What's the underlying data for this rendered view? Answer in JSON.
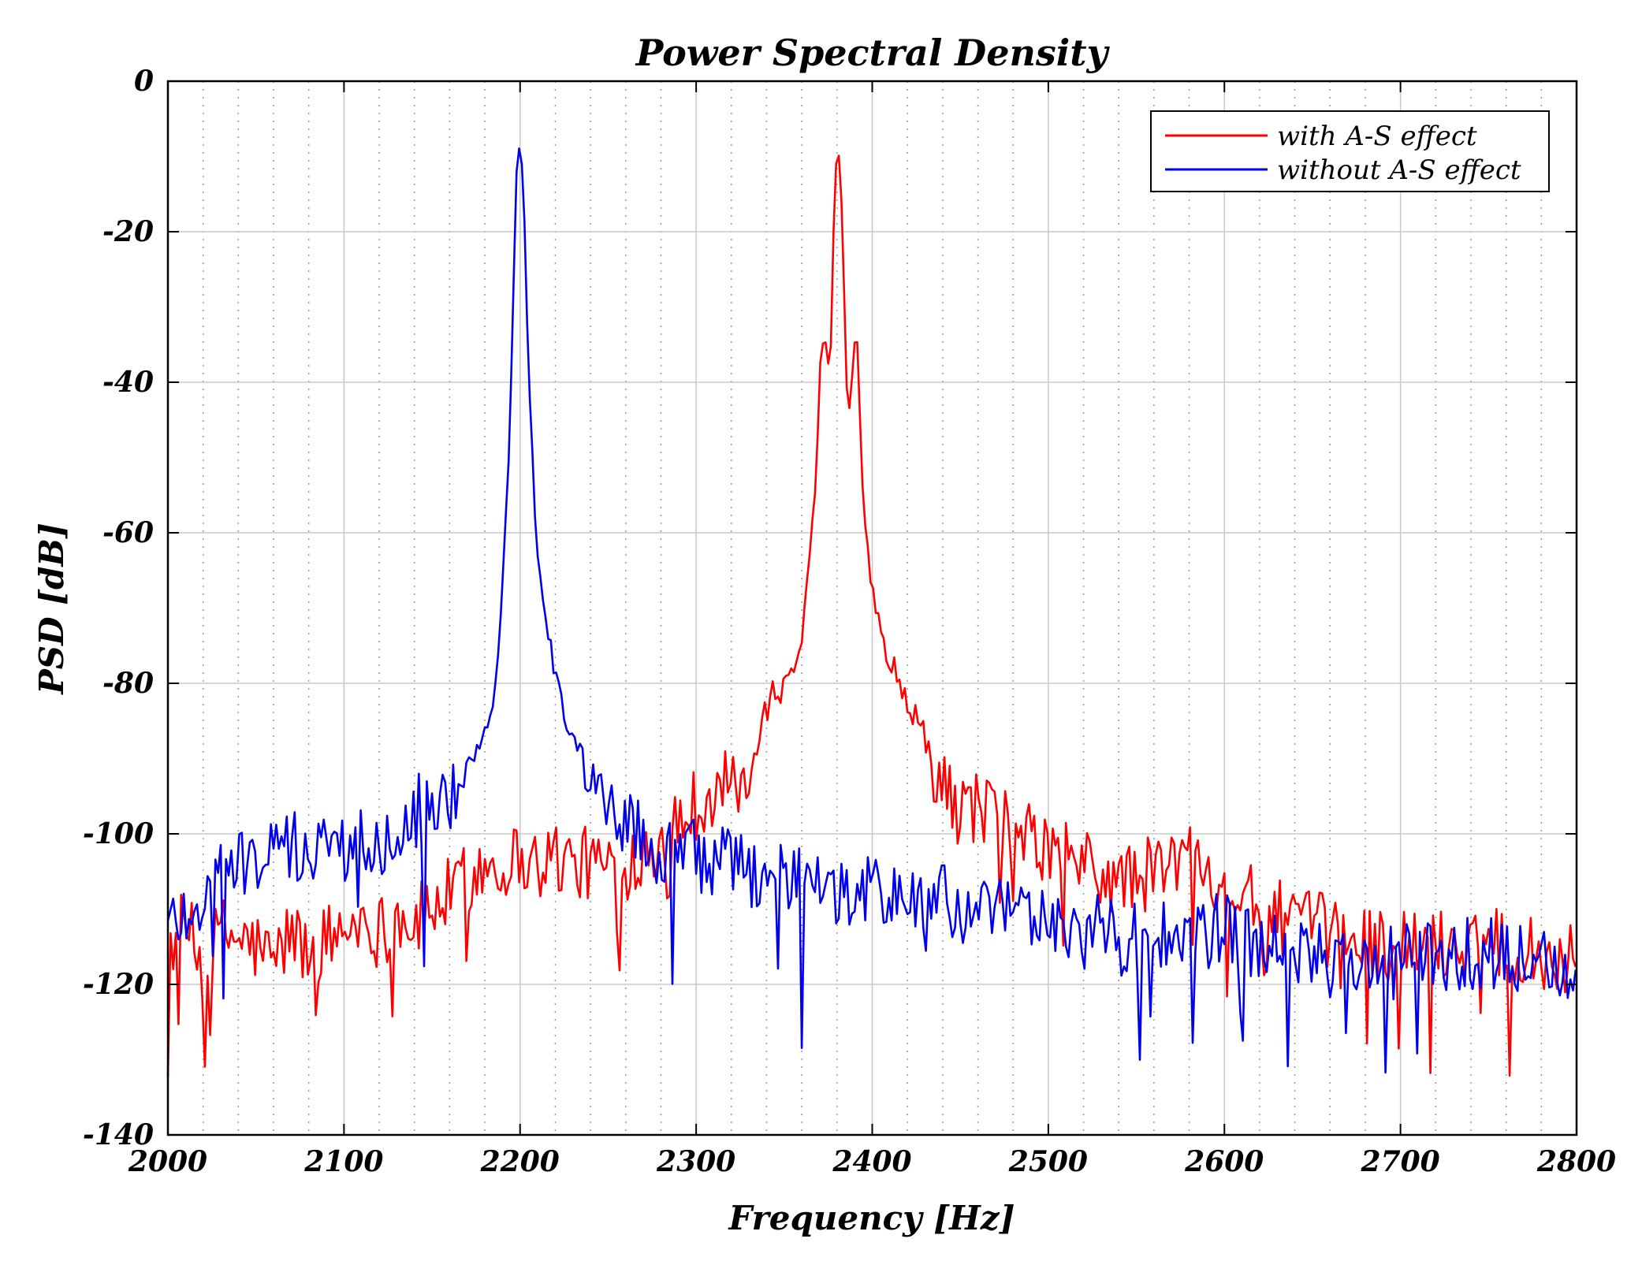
{
  "chart_data": {
    "type": "line",
    "title": "Power Spectral Density",
    "xlabel": "Frequency [Hz]",
    "ylabel": "PSD [dB]",
    "xlim": [
      2000,
      2800
    ],
    "ylim": [
      -140,
      0
    ],
    "xticks": [
      2000,
      2100,
      2200,
      2300,
      2400,
      2500,
      2600,
      2700,
      2800
    ],
    "yticks": [
      0,
      -20,
      -40,
      -60,
      -80,
      -100,
      -120,
      -140
    ],
    "xticklabels": [
      "2000",
      "2100",
      "2200",
      "2300",
      "2400",
      "2500",
      "2600",
      "2700",
      "2800"
    ],
    "yticklabels": [
      "0",
      "-20",
      "-40",
      "-60",
      "-80",
      "-100",
      "-120",
      "-140"
    ],
    "grid": true,
    "legend_position": "top-right",
    "series": [
      {
        "name": "with A-S effect",
        "color": "#ff0000",
        "anchors": [
          [
            2000,
            -115
          ],
          [
            2010,
            -112
          ],
          [
            2020,
            -118
          ],
          [
            2030,
            -113
          ],
          [
            2040,
            -114
          ],
          [
            2050,
            -115
          ],
          [
            2060,
            -117
          ],
          [
            2070,
            -113
          ],
          [
            2080,
            -116
          ],
          [
            2090,
            -114
          ],
          [
            2100,
            -113
          ],
          [
            2110,
            -111
          ],
          [
            2120,
            -113
          ],
          [
            2130,
            -111
          ],
          [
            2140,
            -112
          ],
          [
            2150,
            -110
          ],
          [
            2160,
            -108
          ],
          [
            2170,
            -106
          ],
          [
            2180,
            -104
          ],
          [
            2190,
            -104
          ],
          [
            2200,
            -103
          ],
          [
            2210,
            -104
          ],
          [
            2220,
            -103
          ],
          [
            2230,
            -104
          ],
          [
            2240,
            -104
          ],
          [
            2250,
            -104
          ],
          [
            2260,
            -104
          ],
          [
            2270,
            -102
          ],
          [
            2280,
            -100
          ],
          [
            2290,
            -98
          ],
          [
            2300,
            -96
          ],
          [
            2310,
            -94
          ],
          [
            2320,
            -94
          ],
          [
            2330,
            -92
          ],
          [
            2335,
            -88
          ],
          [
            2340,
            -84
          ],
          [
            2345,
            -81
          ],
          [
            2350,
            -80
          ],
          [
            2355,
            -79
          ],
          [
            2360,
            -75
          ],
          [
            2362,
            -68
          ],
          [
            2365,
            -62
          ],
          [
            2368,
            -52
          ],
          [
            2370,
            -40
          ],
          [
            2372,
            -34
          ],
          [
            2374,
            -35
          ],
          [
            2376,
            -40
          ],
          [
            2378,
            -20
          ],
          [
            2380,
            -8
          ],
          [
            2382,
            -12
          ],
          [
            2384,
            -28
          ],
          [
            2386,
            -45
          ],
          [
            2388,
            -40
          ],
          [
            2390,
            -34
          ],
          [
            2392,
            -36
          ],
          [
            2394,
            -52
          ],
          [
            2397,
            -62
          ],
          [
            2400,
            -68
          ],
          [
            2405,
            -73
          ],
          [
            2410,
            -78
          ],
          [
            2420,
            -82
          ],
          [
            2430,
            -88
          ],
          [
            2440,
            -94
          ],
          [
            2450,
            -97
          ],
          [
            2460,
            -96
          ],
          [
            2470,
            -97
          ],
          [
            2480,
            -100
          ],
          [
            2490,
            -101
          ],
          [
            2500,
            -102
          ],
          [
            2510,
            -103
          ],
          [
            2520,
            -104
          ],
          [
            2530,
            -106
          ],
          [
            2540,
            -106
          ],
          [
            2550,
            -106
          ],
          [
            2560,
            -105
          ],
          [
            2570,
            -104
          ],
          [
            2580,
            -103
          ],
          [
            2590,
            -104
          ],
          [
            2600,
            -106
          ],
          [
            2610,
            -108
          ],
          [
            2620,
            -110
          ],
          [
            2630,
            -111
          ],
          [
            2640,
            -112
          ],
          [
            2660,
            -113
          ],
          [
            2680,
            -114
          ],
          [
            2700,
            -115
          ],
          [
            2720,
            -115
          ],
          [
            2740,
            -114
          ],
          [
            2760,
            -114
          ],
          [
            2780,
            -116
          ],
          [
            2800,
            -117
          ]
        ],
        "peak_hz": 2380,
        "peak_db": -8
      },
      {
        "name": "without A-S effect",
        "color": "#0000ee",
        "anchors": [
          [
            2000,
            -112
          ],
          [
            2010,
            -110
          ],
          [
            2020,
            -109
          ],
          [
            2030,
            -106
          ],
          [
            2040,
            -104
          ],
          [
            2050,
            -103
          ],
          [
            2060,
            -103
          ],
          [
            2070,
            -102
          ],
          [
            2080,
            -102
          ],
          [
            2090,
            -102
          ],
          [
            2100,
            -102
          ],
          [
            2110,
            -101
          ],
          [
            2120,
            -101
          ],
          [
            2130,
            -98
          ],
          [
            2140,
            -97
          ],
          [
            2150,
            -96
          ],
          [
            2160,
            -95
          ],
          [
            2165,
            -93
          ],
          [
            2170,
            -91
          ],
          [
            2175,
            -89
          ],
          [
            2180,
            -86
          ],
          [
            2185,
            -82
          ],
          [
            2188,
            -75
          ],
          [
            2190,
            -67
          ],
          [
            2192,
            -57
          ],
          [
            2194,
            -48
          ],
          [
            2196,
            -30
          ],
          [
            2198,
            -12
          ],
          [
            2200,
            -8
          ],
          [
            2202,
            -14
          ],
          [
            2204,
            -32
          ],
          [
            2206,
            -45
          ],
          [
            2208,
            -55
          ],
          [
            2210,
            -63
          ],
          [
            2213,
            -68
          ],
          [
            2216,
            -73
          ],
          [
            2220,
            -79
          ],
          [
            2225,
            -84
          ],
          [
            2230,
            -88
          ],
          [
            2235,
            -91
          ],
          [
            2240,
            -94
          ],
          [
            2250,
            -96
          ],
          [
            2260,
            -98
          ],
          [
            2270,
            -101
          ],
          [
            2280,
            -102
          ],
          [
            2290,
            -103
          ],
          [
            2300,
            -103
          ],
          [
            2310,
            -104
          ],
          [
            2320,
            -104
          ],
          [
            2330,
            -105
          ],
          [
            2340,
            -105
          ],
          [
            2350,
            -106
          ],
          [
            2360,
            -107
          ],
          [
            2370,
            -108
          ],
          [
            2380,
            -108
          ],
          [
            2390,
            -108
          ],
          [
            2400,
            -108
          ],
          [
            2410,
            -108
          ],
          [
            2420,
            -108
          ],
          [
            2430,
            -109
          ],
          [
            2440,
            -109
          ],
          [
            2450,
            -110
          ],
          [
            2460,
            -110
          ],
          [
            2470,
            -111
          ],
          [
            2480,
            -111
          ],
          [
            2490,
            -111
          ],
          [
            2500,
            -112
          ],
          [
            2510,
            -112
          ],
          [
            2520,
            -113
          ],
          [
            2530,
            -113
          ],
          [
            2540,
            -114
          ],
          [
            2550,
            -114
          ],
          [
            2560,
            -114
          ],
          [
            2570,
            -114
          ],
          [
            2580,
            -114
          ],
          [
            2590,
            -113
          ],
          [
            2600,
            -113
          ],
          [
            2610,
            -114
          ],
          [
            2620,
            -115
          ],
          [
            2640,
            -116
          ],
          [
            2660,
            -117
          ],
          [
            2680,
            -117
          ],
          [
            2700,
            -117
          ],
          [
            2720,
            -116
          ],
          [
            2740,
            -116
          ],
          [
            2760,
            -116
          ],
          [
            2780,
            -117
          ],
          [
            2800,
            -118
          ]
        ],
        "peak_hz": 2200,
        "peak_db": -8
      }
    ]
  }
}
